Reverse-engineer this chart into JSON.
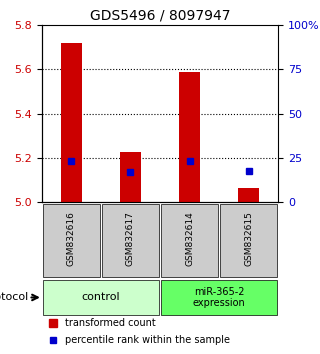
{
  "title": "GDS5496 / 8097947",
  "samples": [
    "GSM832616",
    "GSM832617",
    "GSM832614",
    "GSM832615"
  ],
  "red_values": [
    5.72,
    5.225,
    5.585,
    5.065
  ],
  "blue_values": [
    5.185,
    5.135,
    5.185,
    5.14
  ],
  "ylim_left": [
    5.0,
    5.8
  ],
  "ylim_right": [
    0,
    100
  ],
  "yticks_left": [
    5.0,
    5.2,
    5.4,
    5.6,
    5.8
  ],
  "yticks_right": [
    0,
    25,
    50,
    75,
    100
  ],
  "ytick_labels_right": [
    "0",
    "25",
    "50",
    "75",
    "100%"
  ],
  "left_color": "#cc0000",
  "right_color": "#0000cc",
  "bar_width": 0.35,
  "groups": [
    {
      "label": "control",
      "samples": [
        0,
        1
      ],
      "color": "#ccffcc"
    },
    {
      "label": "miR-365-2\nexpression",
      "samples": [
        2,
        3
      ],
      "color": "#66ff66"
    }
  ],
  "protocol_label": "protocol",
  "legend_items": [
    {
      "color": "#cc0000",
      "label": "transformed count"
    },
    {
      "color": "#0000cc",
      "label": "percentile rank within the sample"
    }
  ],
  "bg_color": "#ffffff",
  "sample_box_color": "#cccccc",
  "grid_dotted_ticks": [
    5.2,
    5.4,
    5.6
  ]
}
